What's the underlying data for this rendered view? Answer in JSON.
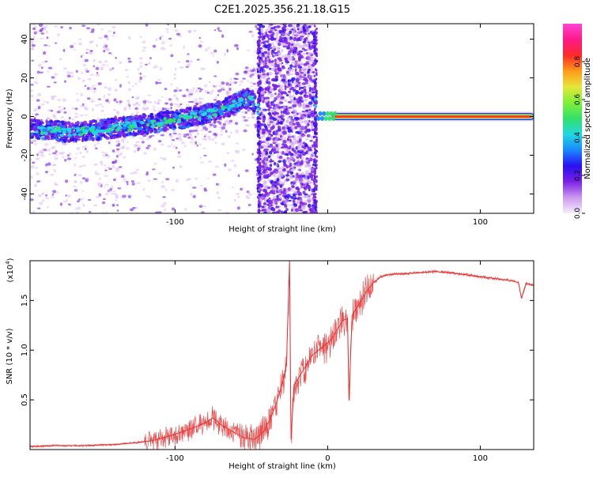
{
  "figure_title": "C2E1.2025.356.21.18.G15",
  "chart_data": [
    {
      "type": "heatmap",
      "title": "C2E1.2025.356.21.18.G15",
      "xlabel": "Height of straight line (km)",
      "ylabel": "Frequency (Hz)",
      "xlim": [
        -195,
        135
      ],
      "ylim": [
        -50,
        48
      ],
      "x_ticks": [
        -100,
        0,
        100
      ],
      "x_tick_labels": [
        "-100",
        "",
        "100"
      ],
      "y_ticks": [
        -40,
        -20,
        0,
        20,
        40
      ],
      "y_tick_labels": [
        "-40",
        "-20",
        "0",
        "20",
        "40"
      ],
      "grid": false,
      "colorbar": {
        "label": "Normalized spectral amplitude",
        "range": [
          0,
          1
        ],
        "ticks": [
          0.0,
          0.2,
          0.4,
          0.6,
          0.8
        ],
        "tick_labels": [
          "0.0",
          "0.2",
          "0.4",
          "0.6",
          "0.8"
        ],
        "colormap": [
          "#f4eefc",
          "#cc99ee",
          "#7a22e6",
          "#2a10f0",
          "#1a88ff",
          "#20d8e0",
          "#33e06a",
          "#7ef03a",
          "#e6e63a",
          "#ff9a1a",
          "#ff2a2a",
          "#ff1a8a",
          "#ff44d2"
        ]
      },
      "ridge": {
        "description_points": [
          {
            "x": -195,
            "y": -6
          },
          {
            "x": -170,
            "y": -8
          },
          {
            "x": -150,
            "y": -7
          },
          {
            "x": -130,
            "y": -5
          },
          {
            "x": -110,
            "y": -3
          },
          {
            "x": -95,
            "y": -1
          },
          {
            "x": -80,
            "y": 1
          },
          {
            "x": -70,
            "y": 3
          },
          {
            "x": -60,
            "y": 7
          },
          {
            "x": -52,
            "y": 10
          },
          {
            "x": -47,
            "y": 7
          }
        ],
        "carrier_line": {
          "x_start": 5,
          "x_end": 133,
          "y": 0
        }
      }
    },
    {
      "type": "line",
      "xlabel": "Height of straight line (km)",
      "ylabel": "SNR (10 * v/v)",
      "y_multiplier": "(x10",
      "y_multiplier_exp": "4",
      "y_multiplier_close": ")",
      "xlim": [
        -195,
        135
      ],
      "ylim": [
        0,
        1.9
      ],
      "x_ticks": [
        -100,
        0,
        100
      ],
      "x_tick_labels": [
        "-100",
        "0",
        "100"
      ],
      "y_ticks": [
        0.5,
        1.0,
        1.5
      ],
      "y_tick_labels": [
        "0.5",
        "1.0",
        "1.5"
      ],
      "grid": false,
      "series": [
        {
          "color": "#e83030",
          "values_xy": [
            [
              -195,
              0.03
            ],
            [
              -180,
              0.04
            ],
            [
              -160,
              0.04
            ],
            [
              -140,
              0.05
            ],
            [
              -125,
              0.07
            ],
            [
              -115,
              0.09
            ],
            [
              -105,
              0.13
            ],
            [
              -95,
              0.18
            ],
            [
              -88,
              0.22
            ],
            [
              -80,
              0.27
            ],
            [
              -75,
              0.32
            ],
            [
              -70,
              0.25
            ],
            [
              -62,
              0.18
            ],
            [
              -55,
              0.12
            ],
            [
              -48,
              0.1
            ],
            [
              -42,
              0.18
            ],
            [
              -38,
              0.3
            ],
            [
              -34,
              0.45
            ],
            [
              -30,
              0.65
            ],
            [
              -27,
              0.85
            ],
            [
              -25,
              1.9
            ],
            [
              -24,
              0.1
            ],
            [
              -22,
              0.65
            ],
            [
              -18,
              0.75
            ],
            [
              -14,
              0.85
            ],
            [
              -10,
              0.95
            ],
            [
              -6,
              1.0
            ],
            [
              -2,
              1.05
            ],
            [
              2,
              1.1
            ],
            [
              6,
              1.2
            ],
            [
              10,
              1.3
            ],
            [
              13,
              1.32
            ],
            [
              14,
              0.5
            ],
            [
              16,
              1.35
            ],
            [
              20,
              1.45
            ],
            [
              25,
              1.58
            ],
            [
              30,
              1.68
            ],
            [
              35,
              1.74
            ],
            [
              40,
              1.76
            ],
            [
              50,
              1.77
            ],
            [
              60,
              1.78
            ],
            [
              70,
              1.79
            ],
            [
              80,
              1.78
            ],
            [
              90,
              1.76
            ],
            [
              100,
              1.74
            ],
            [
              110,
              1.72
            ],
            [
              120,
              1.7
            ],
            [
              125,
              1.68
            ],
            [
              127,
              1.52
            ],
            [
              130,
              1.67
            ],
            [
              135,
              1.65
            ]
          ]
        }
      ]
    }
  ]
}
